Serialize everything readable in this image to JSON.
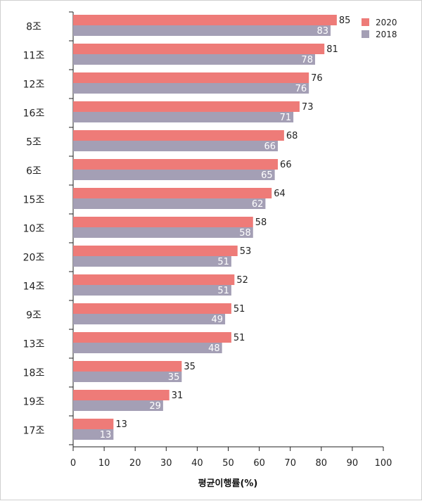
{
  "chart_data": {
    "type": "bar",
    "orientation": "horizontal",
    "categories": [
      "8조",
      "11조",
      "12조",
      "16조",
      "5조",
      "6조",
      "15조",
      "10조",
      "20조",
      "14조",
      "9조",
      "13조",
      "18조",
      "19조",
      "17조"
    ],
    "series": [
      {
        "name": "2020",
        "color": "#ee7b78",
        "values": [
          85,
          81,
          76,
          73,
          68,
          66,
          64,
          58,
          53,
          52,
          51,
          51,
          35,
          31,
          13
        ]
      },
      {
        "name": "2018",
        "color": "#a49fb5",
        "values": [
          83,
          78,
          76,
          71,
          66,
          65,
          62,
          58,
          51,
          51,
          49,
          48,
          35,
          29,
          13
        ]
      }
    ],
    "xlabel": "평균이행률(%)",
    "xlim": [
      0,
      100
    ],
    "xticks": [
      "0",
      "10",
      "20",
      "30",
      "40",
      "50",
      "60",
      "70",
      "80",
      "90",
      "100"
    ],
    "legend_position": "top-right",
    "grid": false,
    "label_color_2020": "#222222",
    "label_color_2018": "#ffffff"
  }
}
